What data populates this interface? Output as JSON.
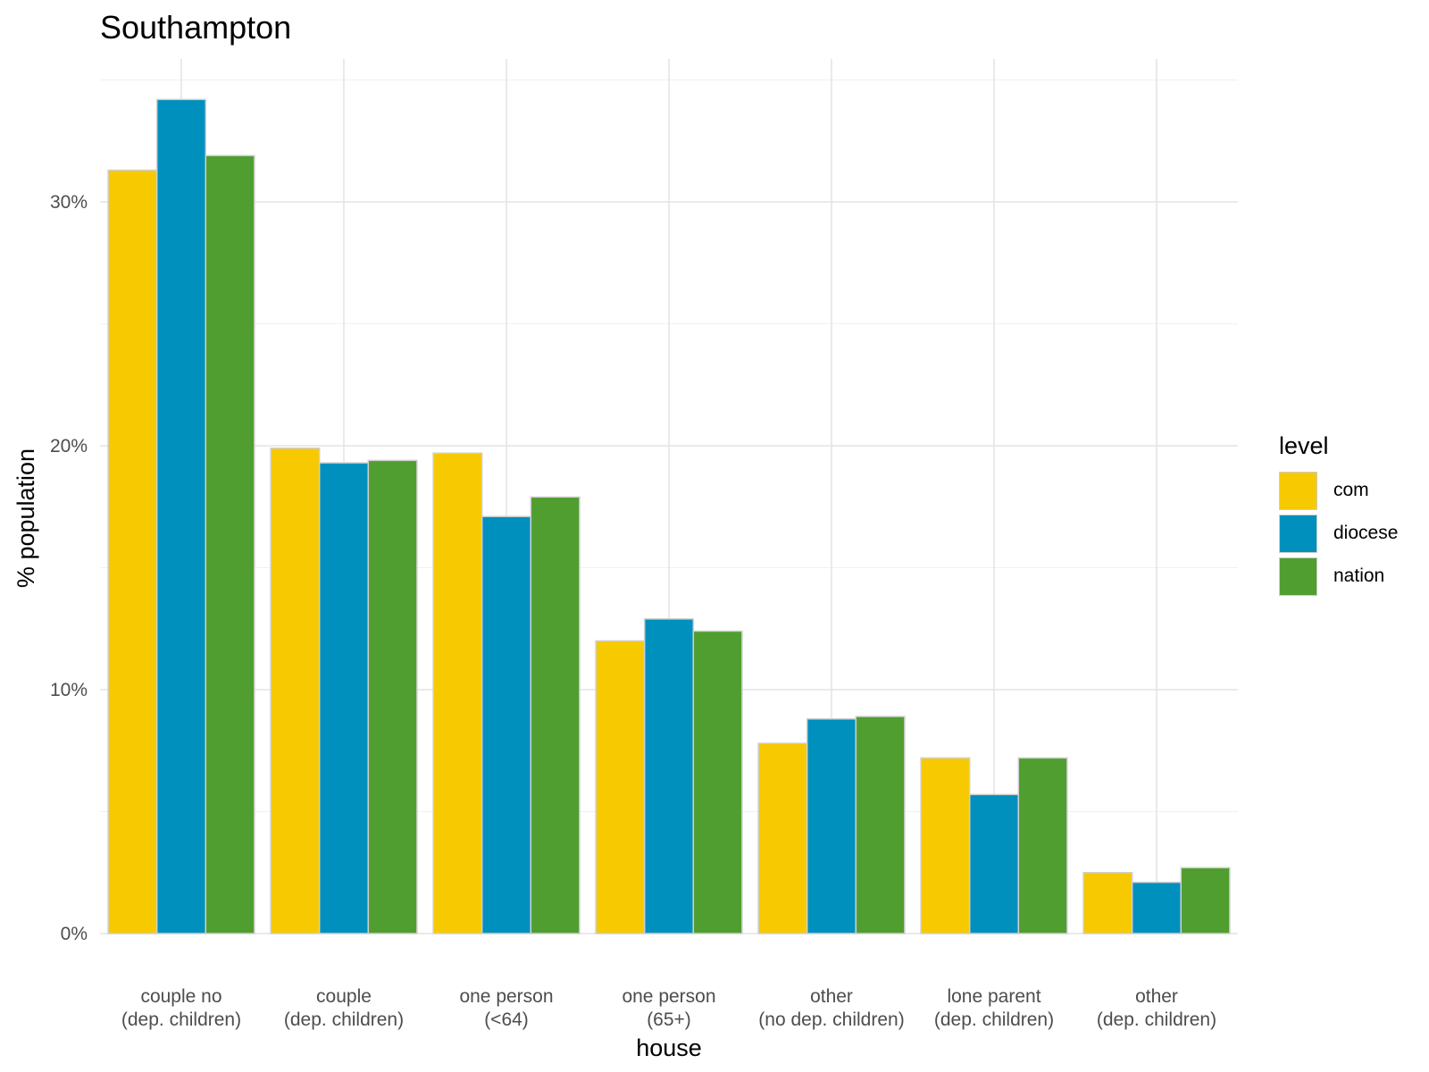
{
  "chart_data": {
    "type": "bar",
    "title": "Southampton",
    "xlabel": "house",
    "ylabel": "% population",
    "legend_title": "level",
    "legend_position": "right",
    "grid": true,
    "categories": [
      [
        "couple no",
        "(dep. children)"
      ],
      [
        "couple",
        "(dep. children)"
      ],
      [
        "one person",
        "(<64)"
      ],
      [
        "one person",
        "(65+)"
      ],
      [
        "other",
        "(no dep. children)"
      ],
      [
        "lone parent",
        "(dep. children)"
      ],
      [
        "other",
        "(dep. children)"
      ]
    ],
    "series": [
      {
        "name": "com",
        "color": "#f7c900",
        "values": [
          31.3,
          19.9,
          19.7,
          12.0,
          7.8,
          7.2,
          2.5
        ]
      },
      {
        "name": "diocese",
        "color": "#0090bd",
        "values": [
          34.2,
          19.3,
          17.1,
          12.9,
          8.8,
          5.7,
          2.1
        ]
      },
      {
        "name": "nation",
        "color": "#509e2f",
        "values": [
          31.9,
          19.4,
          17.9,
          12.4,
          8.9,
          7.2,
          2.7
        ]
      }
    ],
    "yticks": [
      {
        "value": 0,
        "label": "0%"
      },
      {
        "value": 10,
        "label": "10%"
      },
      {
        "value": 20,
        "label": "20%"
      },
      {
        "value": 30,
        "label": "30%"
      }
    ],
    "ylim": [
      0,
      35
    ]
  }
}
